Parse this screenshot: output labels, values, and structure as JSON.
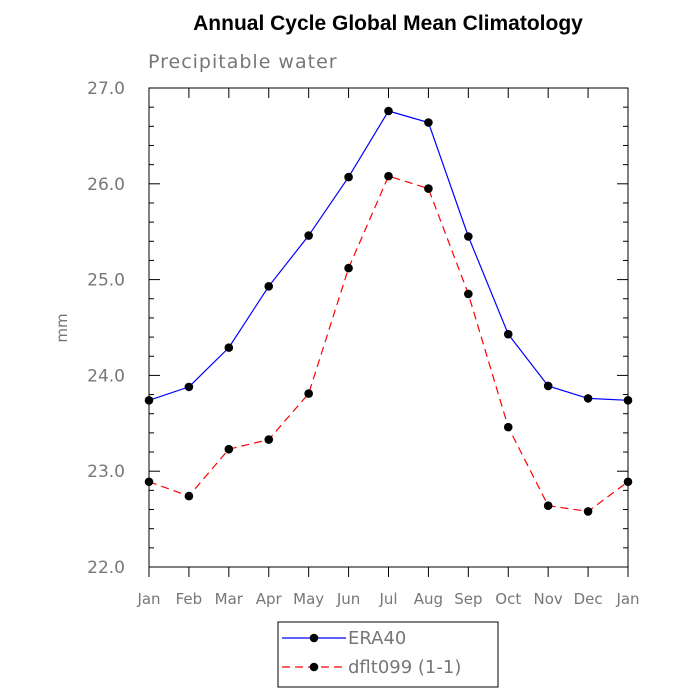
{
  "chart_data": {
    "type": "line",
    "title": "Annual Cycle Global Mean Climatology",
    "subtitle": "Precipitable water",
    "xlabel": "",
    "ylabel": "mm",
    "categories": [
      "Jan",
      "Feb",
      "Mar",
      "Apr",
      "May",
      "Jun",
      "Jul",
      "Aug",
      "Sep",
      "Oct",
      "Nov",
      "Dec",
      "Jan"
    ],
    "ylim": [
      22.0,
      27.0
    ],
    "yticks": [
      "22.0",
      "23.0",
      "24.0",
      "25.0",
      "26.0",
      "27.0"
    ],
    "legend_position": "bottom-center",
    "series": [
      {
        "name": "ERA40",
        "color": "#0000ff",
        "dash": "solid",
        "values": [
          23.74,
          23.88,
          24.29,
          24.93,
          25.46,
          26.07,
          26.76,
          26.64,
          25.45,
          24.43,
          23.89,
          23.76,
          23.74
        ]
      },
      {
        "name": "dflt099 (1-1)",
        "color": "#ff0000",
        "dash": "dashed",
        "values": [
          22.89,
          22.74,
          23.23,
          23.33,
          23.81,
          25.12,
          26.08,
          25.95,
          24.85,
          23.46,
          22.64,
          22.58,
          22.89
        ]
      }
    ]
  }
}
